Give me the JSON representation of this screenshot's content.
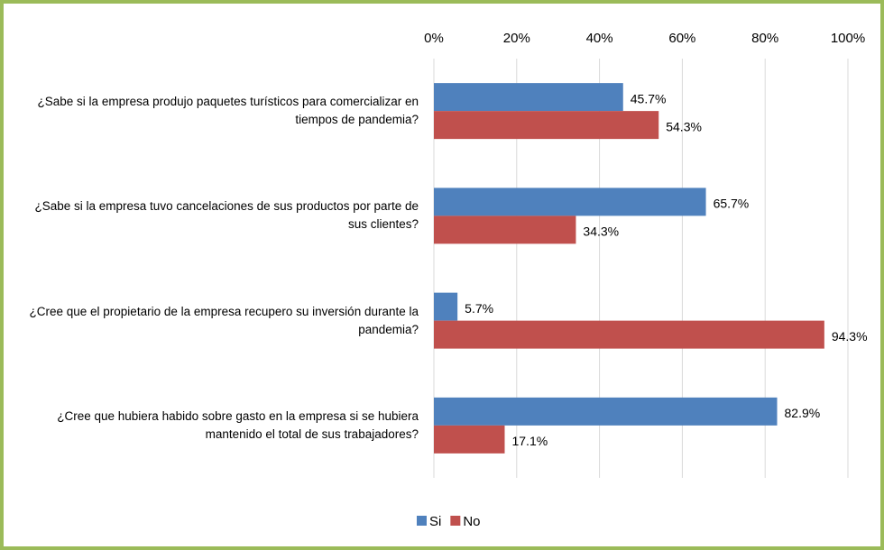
{
  "chart_data": {
    "type": "bar",
    "orientation": "horizontal",
    "categories": [
      "¿Sabe si la empresa produjo paquetes turísticos para comercializar en tiempos de pandemia?",
      "¿Sabe si la empresa tuvo cancelaciones de sus productos por parte de sus clientes?",
      "¿Cree que el propietario de la empresa recupero su inversión durante la pandemia?",
      "¿Cree que hubiera habido sobre gasto en la empresa si se hubiera mantenido el total de sus trabajadores?"
    ],
    "series": [
      {
        "name": "Si",
        "color": "#4f81bd",
        "values": [
          45.7,
          65.7,
          5.7,
          82.9
        ],
        "value_labels": [
          "45.7%",
          "65.7%",
          "5.7%",
          "82.9%"
        ]
      },
      {
        "name": "No",
        "color": "#c0504d",
        "values": [
          54.3,
          34.3,
          94.3,
          17.1
        ],
        "value_labels": [
          "54.3%",
          "34.3%",
          "94.3%",
          "17.1%"
        ]
      }
    ],
    "xlim": [
      0,
      100
    ],
    "xticks": [
      {
        "value": 0,
        "label": "0%"
      },
      {
        "value": 20,
        "label": "20%"
      },
      {
        "value": 40,
        "label": "40%"
      },
      {
        "value": 60,
        "label": "60%"
      },
      {
        "value": 80,
        "label": "80%"
      },
      {
        "value": 100,
        "label": "100%"
      }
    ],
    "grid": true,
    "legend": "bottom"
  }
}
